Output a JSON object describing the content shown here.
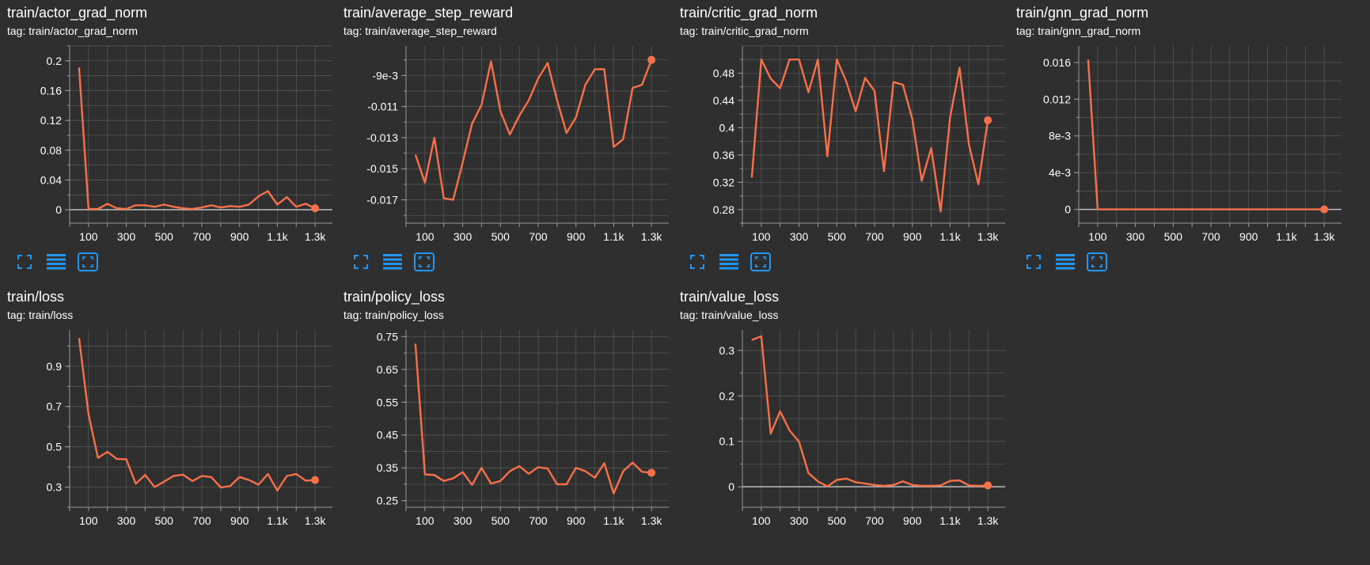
{
  "colors": {
    "line": "#f6704a",
    "grid": "#5a5a5a",
    "axis": "#9a9a9a",
    "text": "#ffffff",
    "icon": "#2196f3",
    "background": "#2f2f2f"
  },
  "toolbar_icons": [
    "fullscreen-icon",
    "data-table-icon",
    "fit-domain-icon"
  ],
  "chart_data": [
    {
      "type": "line",
      "title": "train/actor_grad_norm",
      "tag_label": "tag: train/actor_grad_norm",
      "xlim": [
        0,
        1400
      ],
      "ylim": [
        -0.018,
        0.22
      ],
      "xticks": [
        100,
        300,
        500,
        700,
        900,
        1100,
        1300
      ],
      "xtick_labels": [
        "100",
        "300",
        "500",
        "700",
        "900",
        "1.1k",
        "1.3k"
      ],
      "yticks": [
        0,
        0.04,
        0.08,
        0.12,
        0.16,
        0.2
      ],
      "ytick_labels": [
        "0",
        "0.04",
        "0.08",
        "0.12",
        "0.16",
        "0.2"
      ],
      "x": [
        50,
        100,
        150,
        200,
        250,
        300,
        350,
        400,
        450,
        500,
        550,
        600,
        650,
        700,
        750,
        800,
        850,
        900,
        950,
        1000,
        1050,
        1100,
        1150,
        1200,
        1250,
        1300
      ],
      "y": [
        0.191,
        0.001,
        0.001,
        0.008,
        0.002,
        0.001,
        0.006,
        0.006,
        0.004,
        0.007,
        0.004,
        0.002,
        0.001,
        0.003,
        0.006,
        0.003,
        0.005,
        0.004,
        0.007,
        0.018,
        0.025,
        0.007,
        0.017,
        0.004,
        0.008,
        0.002
      ]
    },
    {
      "type": "line",
      "title": "train/average_step_reward",
      "tag_label": "tag: train/average_step_reward",
      "xlim": [
        0,
        1400
      ],
      "ylim": [
        -0.0185,
        -0.0071
      ],
      "xticks": [
        100,
        300,
        500,
        700,
        900,
        1100,
        1300
      ],
      "xtick_labels": [
        "100",
        "300",
        "500",
        "700",
        "900",
        "1.1k",
        "1.3k"
      ],
      "yticks": [
        -0.017,
        -0.015,
        -0.013,
        -0.011,
        -0.009
      ],
      "ytick_labels": [
        "-0.017",
        "-0.015",
        "-0.013",
        "-0.011",
        "-9e-3"
      ],
      "x": [
        50,
        100,
        150,
        200,
        250,
        300,
        350,
        400,
        450,
        500,
        550,
        600,
        650,
        700,
        750,
        800,
        850,
        900,
        950,
        1000,
        1050,
        1100,
        1150,
        1200,
        1250,
        1300
      ],
      "y": [
        -0.0141,
        -0.0159,
        -0.013,
        -0.0169,
        -0.017,
        -0.0146,
        -0.0121,
        -0.0109,
        -0.0081,
        -0.0113,
        -0.0128,
        -0.0116,
        -0.0106,
        -0.0092,
        -0.0082,
        -0.0106,
        -0.0127,
        -0.0117,
        -0.0096,
        -0.0086,
        -0.0086,
        -0.0136,
        -0.0131,
        -0.0098,
        -0.0096,
        -0.008
      ]
    },
    {
      "type": "line",
      "title": "train/critic_grad_norm",
      "tag_label": "tag: train/critic_grad_norm",
      "xlim": [
        0,
        1400
      ],
      "ylim": [
        0.26,
        0.52
      ],
      "xticks": [
        100,
        300,
        500,
        700,
        900,
        1100,
        1300
      ],
      "xtick_labels": [
        "100",
        "300",
        "500",
        "700",
        "900",
        "1.1k",
        "1.3k"
      ],
      "yticks": [
        0.28,
        0.32,
        0.36,
        0.4,
        0.44,
        0.48
      ],
      "ytick_labels": [
        "0.28",
        "0.32",
        "0.36",
        "0.4",
        "0.44",
        "0.48"
      ],
      "x": [
        50,
        100,
        150,
        200,
        250,
        300,
        350,
        400,
        450,
        500,
        550,
        600,
        650,
        700,
        750,
        800,
        850,
        900,
        950,
        1000,
        1050,
        1100,
        1150,
        1200,
        1250,
        1300
      ],
      "y": [
        0.327,
        0.5,
        0.472,
        0.458,
        0.5,
        0.5,
        0.452,
        0.5,
        0.358,
        0.5,
        0.468,
        0.424,
        0.473,
        0.454,
        0.336,
        0.467,
        0.463,
        0.413,
        0.322,
        0.37,
        0.277,
        0.415,
        0.488,
        0.375,
        0.317,
        0.411
      ]
    },
    {
      "type": "line",
      "title": "train/gnn_grad_norm",
      "tag_label": "tag: train/gnn_grad_norm",
      "xlim": [
        0,
        1400
      ],
      "ylim": [
        -0.0015,
        0.0178
      ],
      "xticks": [
        100,
        300,
        500,
        700,
        900,
        1100,
        1300
      ],
      "xtick_labels": [
        "100",
        "300",
        "500",
        "700",
        "900",
        "1.1k",
        "1.3k"
      ],
      "yticks": [
        0,
        0.004,
        0.008,
        0.012,
        0.016
      ],
      "ytick_labels": [
        "0",
        "4e-3",
        "8e-3",
        "0.012",
        "0.016"
      ],
      "x": [
        50,
        100,
        150,
        200,
        250,
        300,
        350,
        400,
        450,
        500,
        550,
        600,
        650,
        700,
        750,
        800,
        850,
        900,
        950,
        1000,
        1050,
        1100,
        1150,
        1200,
        1250,
        1300
      ],
      "y": [
        0.0163,
        0,
        0,
        0,
        0,
        0,
        0,
        0,
        0,
        0,
        0,
        0,
        0,
        0,
        0,
        0,
        0,
        0,
        0,
        0,
        0,
        0,
        0,
        0,
        0,
        0
      ]
    },
    {
      "type": "line",
      "title": "train/loss",
      "tag_label": "tag: train/loss",
      "xlim": [
        0,
        1400
      ],
      "ylim": [
        0.2,
        1.08
      ],
      "xticks": [
        100,
        300,
        500,
        700,
        900,
        1100,
        1300
      ],
      "xtick_labels": [
        "100",
        "300",
        "500",
        "700",
        "900",
        "1.1k",
        "1.3k"
      ],
      "yticks": [
        0.3,
        0.5,
        0.7,
        0.9
      ],
      "ytick_labels": [
        "0.3",
        "0.5",
        "0.7",
        "0.9"
      ],
      "x": [
        50,
        100,
        150,
        200,
        250,
        300,
        350,
        400,
        450,
        500,
        550,
        600,
        650,
        700,
        750,
        800,
        850,
        900,
        950,
        1000,
        1050,
        1100,
        1150,
        1200,
        1250,
        1300
      ],
      "y": [
        1.04,
        0.66,
        0.445,
        0.475,
        0.44,
        0.438,
        0.317,
        0.36,
        0.3,
        0.327,
        0.355,
        0.362,
        0.33,
        0.355,
        0.35,
        0.298,
        0.305,
        0.35,
        0.335,
        0.312,
        0.365,
        0.283,
        0.355,
        0.365,
        0.332,
        0.335
      ]
    },
    {
      "type": "line",
      "title": "train/policy_loss",
      "tag_label": "tag: train/policy_loss",
      "xlim": [
        0,
        1400
      ],
      "ylim": [
        0.23,
        0.77
      ],
      "xticks": [
        100,
        300,
        500,
        700,
        900,
        1100,
        1300
      ],
      "xtick_labels": [
        "100",
        "300",
        "500",
        "700",
        "900",
        "1.1k",
        "1.3k"
      ],
      "yticks": [
        0.25,
        0.35,
        0.45,
        0.55,
        0.65,
        0.75
      ],
      "ytick_labels": [
        "0.25",
        "0.35",
        "0.45",
        "0.55",
        "0.65",
        "0.75"
      ],
      "x": [
        50,
        100,
        150,
        200,
        250,
        300,
        350,
        400,
        450,
        500,
        550,
        600,
        650,
        700,
        750,
        800,
        850,
        900,
        950,
        1000,
        1050,
        1100,
        1150,
        1200,
        1250,
        1300
      ],
      "y": [
        0.728,
        0.33,
        0.328,
        0.31,
        0.318,
        0.337,
        0.298,
        0.35,
        0.302,
        0.31,
        0.34,
        0.355,
        0.332,
        0.352,
        0.348,
        0.3,
        0.3,
        0.35,
        0.34,
        0.32,
        0.364,
        0.272,
        0.34,
        0.366,
        0.338,
        0.335
      ]
    },
    {
      "type": "line",
      "title": "train/value_loss",
      "tag_label": "tag: train/value_loss",
      "xlim": [
        0,
        1400
      ],
      "ylim": [
        -0.045,
        0.345
      ],
      "xticks": [
        100,
        300,
        500,
        700,
        900,
        1100,
        1300
      ],
      "xtick_labels": [
        "100",
        "300",
        "500",
        "700",
        "900",
        "1.1k",
        "1.3k"
      ],
      "yticks": [
        0,
        0.1,
        0.2,
        0.3
      ],
      "ytick_labels": [
        "0",
        "0.1",
        "0.2",
        "0.3"
      ],
      "x": [
        50,
        100,
        150,
        200,
        250,
        300,
        350,
        400,
        450,
        500,
        550,
        600,
        650,
        700,
        750,
        800,
        850,
        900,
        950,
        1000,
        1050,
        1100,
        1150,
        1200,
        1250,
        1300
      ],
      "y": [
        0.323,
        0.331,
        0.117,
        0.166,
        0.124,
        0.099,
        0.03,
        0.012,
        0.001,
        0.015,
        0.018,
        0.01,
        0.007,
        0.004,
        0.002,
        0.004,
        0.012,
        0.004,
        0.002,
        0.002,
        0.003,
        0.013,
        0.014,
        0.003,
        0.002,
        0.003
      ]
    }
  ]
}
